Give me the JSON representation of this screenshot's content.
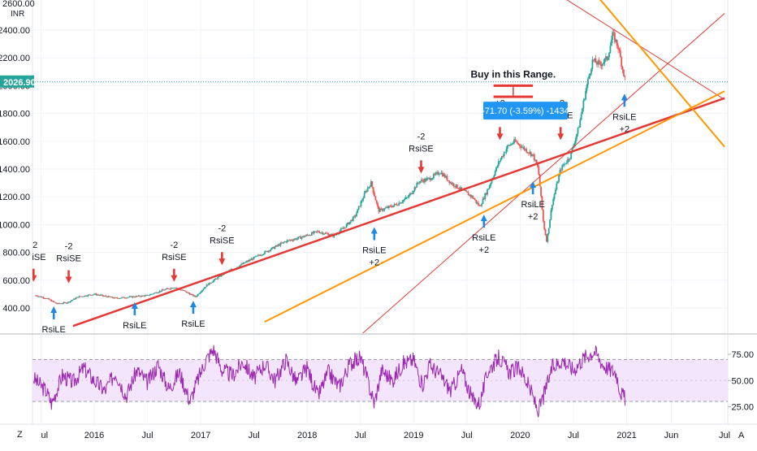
{
  "header": {
    "top_price_label": "2600.00",
    "currency": "INR"
  },
  "current_price": {
    "value": 2026.9,
    "label": "2026.90"
  },
  "annotations": {
    "range_text": "Buy in this Range.",
    "measure_label": "-71.70 (-3.59%) -1434"
  },
  "colors": {
    "bull_candle": "#26a69a",
    "bear_candle": "#ef5350",
    "trend_red": "#e53935",
    "trend_orange": "#ff9800",
    "rsi_line": "#9c27b0",
    "rsi_band": "#f3e5fb",
    "price_tag": "#26a69a",
    "buy_arrow": "#1e88e5",
    "sell_arrow": "#e53935",
    "measure_box": "#2196f3"
  },
  "signals": {
    "sell_prefix": "-2",
    "sell_label": "RsiSE",
    "buy_label": "RsiLE",
    "buy_suffix": "+2"
  },
  "chart_data": [
    {
      "type": "candlestick",
      "title": "",
      "y_axis": {
        "min": 300,
        "max": 2600,
        "ticks": [
          400,
          600,
          800,
          1000,
          1200,
          1400,
          1600,
          1800,
          2000,
          2200,
          2400
        ],
        "tick_labels": [
          "400.00",
          "600.00",
          "800.00",
          "1000.00",
          "1200.00",
          "1400.00",
          "1600.00",
          "1800.00",
          "2000.00",
          "2200.00",
          "2400.00"
        ]
      },
      "x_axis": {
        "ticks": [
          2015.5,
          2016.0,
          2016.5,
          2017.0,
          2017.5,
          2018.0,
          2018.5,
          2019.0,
          2019.5,
          2020.0,
          2020.5,
          2021.0,
          2021.42,
          2021.92
        ],
        "tick_labels": [
          "ul",
          "2016",
          "Jul",
          "2017",
          "Jul",
          "2018",
          "Jul",
          "2019",
          "Jul",
          "2020",
          "Jul",
          "2021",
          "Jun",
          "Jul"
        ]
      },
      "price_path": [
        [
          2015.45,
          490
        ],
        [
          2015.55,
          470
        ],
        [
          2015.65,
          430
        ],
        [
          2015.75,
          440
        ],
        [
          2015.85,
          480
        ],
        [
          2016.0,
          500
        ],
        [
          2016.2,
          470
        ],
        [
          2016.35,
          480
        ],
        [
          2016.5,
          490
        ],
        [
          2016.65,
          530
        ],
        [
          2016.75,
          550
        ],
        [
          2016.85,
          520
        ],
        [
          2016.95,
          480
        ],
        [
          2017.05,
          560
        ],
        [
          2017.2,
          640
        ],
        [
          2017.35,
          700
        ],
        [
          2017.5,
          760
        ],
        [
          2017.65,
          820
        ],
        [
          2017.8,
          880
        ],
        [
          2017.95,
          910
        ],
        [
          2018.1,
          950
        ],
        [
          2018.25,
          920
        ],
        [
          2018.35,
          980
        ],
        [
          2018.45,
          1060
        ],
        [
          2018.55,
          1240
        ],
        [
          2018.6,
          1300
        ],
        [
          2018.67,
          1100
        ],
        [
          2018.75,
          1120
        ],
        [
          2018.85,
          1150
        ],
        [
          2018.95,
          1200
        ],
        [
          2019.05,
          1310
        ],
        [
          2019.15,
          1330
        ],
        [
          2019.25,
          1380
        ],
        [
          2019.35,
          1300
        ],
        [
          2019.45,
          1250
        ],
        [
          2019.55,
          1200
        ],
        [
          2019.62,
          1130
        ],
        [
          2019.7,
          1260
        ],
        [
          2019.8,
          1450
        ],
        [
          2019.88,
          1560
        ],
        [
          2019.95,
          1600
        ],
        [
          2020.05,
          1540
        ],
        [
          2020.12,
          1500
        ],
        [
          2020.17,
          1400
        ],
        [
          2020.22,
          1000
        ],
        [
          2020.25,
          880
        ],
        [
          2020.3,
          1150
        ],
        [
          2020.38,
          1400
        ],
        [
          2020.47,
          1490
        ],
        [
          2020.55,
          1700
        ],
        [
          2020.62,
          1980
        ],
        [
          2020.68,
          2180
        ],
        [
          2020.75,
          2150
        ],
        [
          2020.82,
          2200
        ],
        [
          2020.87,
          2370
        ],
        [
          2020.92,
          2280
        ],
        [
          2020.96,
          2130
        ],
        [
          2020.99,
          2026.9
        ]
      ],
      "trendlines": [
        {
          "color": "trend_red",
          "width": 2.5,
          "points": [
            [
              2015.8,
              270
            ],
            [
              2021.92,
              1910
            ]
          ]
        },
        {
          "color": "trend_red",
          "width": 1,
          "points": [
            [
              2019.65,
              3000
            ],
            [
              2021.92,
              1900
            ]
          ]
        },
        {
          "color": "trend_red",
          "width": 1,
          "points": [
            [
              2018.2,
              0
            ],
            [
              2021.92,
              2520
            ]
          ]
        },
        {
          "color": "trend_orange",
          "width": 2,
          "points": [
            [
              2017.6,
              300
            ],
            [
              2021.92,
              1960
            ]
          ]
        },
        {
          "color": "trend_orange",
          "width": 2,
          "points": [
            [
              2020.63,
              2730
            ],
            [
              2021.92,
              1560
            ]
          ]
        }
      ],
      "sell_signals": [
        {
          "x": 2015.43,
          "y": 600,
          "text_prefix": "-2"
        },
        {
          "x": 2015.76,
          "y": 590,
          "text_prefix": "-2"
        },
        {
          "x": 2016.75,
          "y": 600,
          "text_prefix": "-2"
        },
        {
          "x": 2017.2,
          "y": 720,
          "text_prefix": "-2"
        },
        {
          "x": 2019.07,
          "y": 1380,
          "text_prefix": "-2"
        },
        {
          "x": 2019.81,
          "y": 1620,
          "text_prefix": "+2"
        },
        {
          "x": 2020.38,
          "y": 1620,
          "text_prefix": "-2"
        }
      ],
      "buy_signals": [
        {
          "x": 2015.62,
          "y": 400,
          "text_suffix": ""
        },
        {
          "x": 2016.38,
          "y": 430,
          "text_suffix": ""
        },
        {
          "x": 2016.93,
          "y": 440,
          "text_suffix": ""
        },
        {
          "x": 2018.63,
          "y": 970,
          "text_suffix": "+2"
        },
        {
          "x": 2019.66,
          "y": 1060,
          "text_suffix": "+2"
        },
        {
          "x": 2020.12,
          "y": 1300,
          "text_suffix": "+2"
        },
        {
          "x": 2020.98,
          "y": 1930,
          "text_suffix": "+2"
        }
      ],
      "buy_range": {
        "x0": 2019.75,
        "x1": 2020.12,
        "y_low": 1920,
        "y_high": 2000
      },
      "measure_box_at": {
        "x": 2020.05,
        "y": 1820
      }
    },
    {
      "type": "line",
      "title": "",
      "series": [
        {
          "values_summary": "RSI oscillator"
        }
      ],
      "y_axis": {
        "min": 15,
        "max": 85,
        "ticks": [
          25,
          50,
          75
        ],
        "tick_labels": [
          "25.00",
          "50.00",
          "75.00"
        ]
      },
      "bands": {
        "upper": 70,
        "lower": 30
      },
      "rsi_path": [
        [
          2015.43,
          52
        ],
        [
          2015.55,
          40
        ],
        [
          2015.6,
          28
        ],
        [
          2015.7,
          55
        ],
        [
          2015.8,
          48
        ],
        [
          2015.9,
          62
        ],
        [
          2016.0,
          50
        ],
        [
          2016.1,
          40
        ],
        [
          2016.2,
          58
        ],
        [
          2016.3,
          35
        ],
        [
          2016.4,
          60
        ],
        [
          2016.5,
          48
        ],
        [
          2016.6,
          65
        ],
        [
          2016.7,
          42
        ],
        [
          2016.8,
          58
        ],
        [
          2016.9,
          30
        ],
        [
          2016.95,
          45
        ],
        [
          2017.05,
          70
        ],
        [
          2017.12,
          80
        ],
        [
          2017.2,
          60
        ],
        [
          2017.3,
          55
        ],
        [
          2017.4,
          68
        ],
        [
          2017.5,
          52
        ],
        [
          2017.6,
          66
        ],
        [
          2017.7,
          50
        ],
        [
          2017.8,
          70
        ],
        [
          2017.9,
          48
        ],
        [
          2018.0,
          62
        ],
        [
          2018.1,
          35
        ],
        [
          2018.2,
          58
        ],
        [
          2018.3,
          44
        ],
        [
          2018.4,
          66
        ],
        [
          2018.5,
          72
        ],
        [
          2018.55,
          56
        ],
        [
          2018.63,
          28
        ],
        [
          2018.7,
          60
        ],
        [
          2018.8,
          50
        ],
        [
          2018.9,
          66
        ],
        [
          2019.0,
          70
        ],
        [
          2019.08,
          45
        ],
        [
          2019.15,
          65
        ],
        [
          2019.25,
          55
        ],
        [
          2019.35,
          40
        ],
        [
          2019.45,
          60
        ],
        [
          2019.55,
          32
        ],
        [
          2019.62,
          28
        ],
        [
          2019.7,
          60
        ],
        [
          2019.8,
          72
        ],
        [
          2019.9,
          58
        ],
        [
          2020.0,
          62
        ],
        [
          2020.1,
          40
        ],
        [
          2020.17,
          20
        ],
        [
          2020.22,
          35
        ],
        [
          2020.3,
          62
        ],
        [
          2020.4,
          70
        ],
        [
          2020.5,
          60
        ],
        [
          2020.6,
          72
        ],
        [
          2020.7,
          78
        ],
        [
          2020.78,
          65
        ],
        [
          2020.85,
          60
        ],
        [
          2020.9,
          58
        ],
        [
          2020.94,
          40
        ],
        [
          2020.99,
          32
        ]
      ]
    }
  ]
}
